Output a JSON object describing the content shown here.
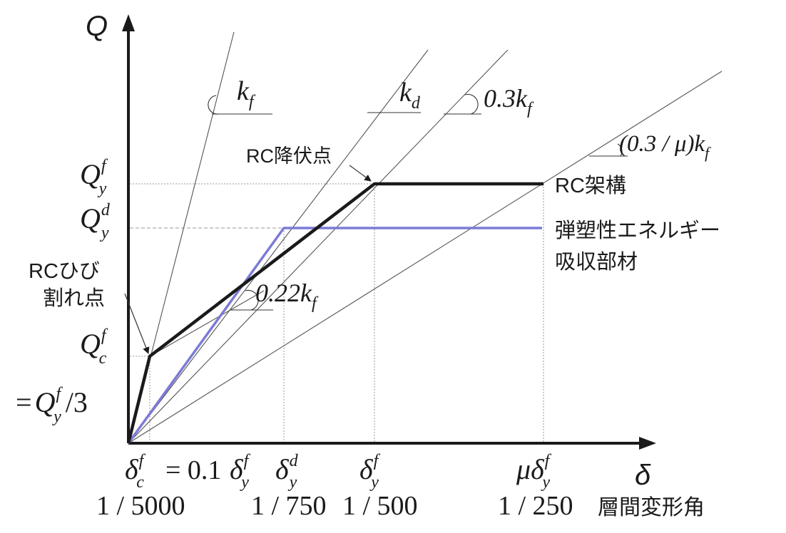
{
  "axes": {
    "y_label": "Q",
    "x_label": "δ",
    "x_axis_caption": "層間変形角"
  },
  "curves": {
    "rc_frame": {
      "label": "RC架構",
      "color": "#1a1a1a"
    },
    "energy_member": {
      "label_line1": "弾塑性エネルギー",
      "label_line2": "吸収部材",
      "color": "#7b7bd6"
    },
    "reference_lines_color": "#555555",
    "guide_color": "#9a9a9a"
  },
  "points": {
    "rc_yield": "RC降伏点",
    "rc_crack_line1": "RCひび",
    "rc_crack_line2": "割れ点"
  },
  "y_ticks": {
    "qyf": {
      "base": "Q",
      "sup": "f",
      "sub": "y"
    },
    "qyd": {
      "base": "Q",
      "sup": "d",
      "sub": "y"
    },
    "qcf": {
      "base": "Q",
      "sup": "f",
      "sub": "c"
    },
    "qcf_eq": {
      "prefix": "=",
      "base": "Q",
      "sup": "f",
      "sub": "y",
      "suffix": "/3"
    }
  },
  "x_ticks": {
    "dcf": {
      "base": "δ",
      "sup": "f",
      "sub": "c"
    },
    "eq_text": "= 0.1",
    "eq_dyf": {
      "base": "δ",
      "sup": "f",
      "sub": "y"
    },
    "dyd": {
      "base": "δ",
      "sup": "d",
      "sub": "y"
    },
    "dyf": {
      "base": "δ",
      "sup": "f",
      "sub": "y"
    },
    "mu_dyf": {
      "prefix": "μ",
      "base": "δ",
      "sup": "f",
      "sub": "y"
    }
  },
  "x_tick_values": {
    "v1": "1 / 5000",
    "v2": "1 / 750",
    "v3": "1 / 500",
    "v4": "1 / 250"
  },
  "slopes": {
    "kf": {
      "base": "k",
      "sub": "f"
    },
    "kd": {
      "base": "k",
      "sub": "d"
    },
    "k03": {
      "coef": "0.3k",
      "sub": "f"
    },
    "k022": {
      "coef": "0.22k",
      "sub": "f"
    },
    "k03mu": {
      "coef": "(0.3 / μ)k",
      "sub": "f"
    }
  }
}
